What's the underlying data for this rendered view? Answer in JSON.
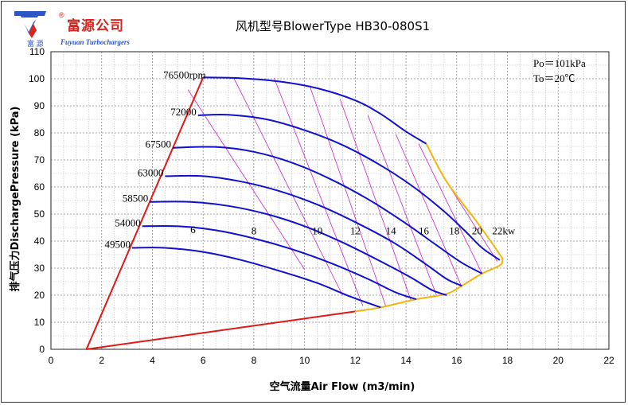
{
  "header": {
    "brand_cn": "富源公司",
    "brand_reg": "®",
    "brand_sub": "富 源",
    "brand_en": "Fuyuan Turbochargers"
  },
  "chart_data": {
    "type": "line",
    "title": "风机型号BlowerType HB30-080S1",
    "xlabel": "空气流量Air Flow (m3/min)",
    "ylabel": "排气压力DischargePressure (kPa)",
    "xlim": [
      0,
      22
    ],
    "ylim": [
      0,
      110
    ],
    "x_ticks": [
      0,
      2,
      4,
      6,
      8,
      10,
      12,
      14,
      16,
      18,
      20,
      22
    ],
    "y_ticks": [
      0,
      10,
      20,
      30,
      40,
      50,
      60,
      70,
      80,
      90,
      100,
      110
    ],
    "grid": true,
    "conditions": [
      "Po＝101kPa",
      "To＝20℃"
    ],
    "speed_curves": [
      {
        "label": "76500rpm",
        "points": [
          [
            6.0,
            100.5
          ],
          [
            7.5,
            100.2
          ],
          [
            9.0,
            99.0
          ],
          [
            10.5,
            96.5
          ],
          [
            12.0,
            92.0
          ],
          [
            13.0,
            87.0
          ],
          [
            14.0,
            80.5
          ],
          [
            14.8,
            76.0
          ]
        ]
      },
      {
        "label": "72000",
        "points": [
          [
            5.8,
            86.5
          ],
          [
            7.0,
            86.7
          ],
          [
            8.5,
            85.0
          ],
          [
            10.0,
            81.0
          ],
          [
            11.5,
            75.5
          ],
          [
            13.0,
            68.0
          ],
          [
            14.3,
            60.0
          ],
          [
            15.5,
            51.0
          ],
          [
            16.3,
            44.0
          ],
          [
            17.0,
            37.5
          ],
          [
            17.7,
            33.0
          ]
        ]
      },
      {
        "label": "67500",
        "points": [
          [
            4.8,
            74.5
          ],
          [
            6.5,
            74.8
          ],
          [
            8.0,
            73.0
          ],
          [
            9.5,
            69.0
          ],
          [
            11.0,
            63.0
          ],
          [
            12.5,
            55.5
          ],
          [
            14.0,
            46.5
          ],
          [
            15.2,
            38.5
          ],
          [
            16.2,
            32.0
          ],
          [
            17.0,
            28.0
          ]
        ]
      },
      {
        "label": "63000",
        "points": [
          [
            4.5,
            64.0
          ],
          [
            6.0,
            64.0
          ],
          [
            7.5,
            62.0
          ],
          [
            9.0,
            58.5
          ],
          [
            10.5,
            53.5
          ],
          [
            12.0,
            47.0
          ],
          [
            13.5,
            39.5
          ],
          [
            14.7,
            32.0
          ],
          [
            15.6,
            26.0
          ],
          [
            16.2,
            23.5
          ]
        ]
      },
      {
        "label": "58500",
        "points": [
          [
            3.9,
            54.5
          ],
          [
            5.5,
            54.5
          ],
          [
            7.0,
            53.0
          ],
          [
            8.5,
            50.0
          ],
          [
            10.0,
            45.5
          ],
          [
            11.5,
            39.5
          ],
          [
            13.0,
            32.5
          ],
          [
            14.2,
            26.5
          ],
          [
            15.0,
            22.0
          ],
          [
            15.6,
            20.0
          ]
        ]
      },
      {
        "label": "54000",
        "points": [
          [
            3.6,
            45.5
          ],
          [
            5.0,
            45.5
          ],
          [
            6.5,
            44.0
          ],
          [
            8.0,
            41.0
          ],
          [
            9.5,
            37.0
          ],
          [
            11.0,
            32.0
          ],
          [
            12.5,
            26.0
          ],
          [
            13.6,
            21.0
          ],
          [
            14.4,
            18.5
          ]
        ]
      },
      {
        "label": "49500",
        "points": [
          [
            3.2,
            37.5
          ],
          [
            4.5,
            37.5
          ],
          [
            6.0,
            36.0
          ],
          [
            7.5,
            33.0
          ],
          [
            9.0,
            29.0
          ],
          [
            10.5,
            24.5
          ],
          [
            11.8,
            19.5
          ],
          [
            13.0,
            15.5
          ]
        ]
      }
    ],
    "surge_line": {
      "points": [
        [
          1.4,
          0
        ],
        [
          6.0,
          100.5
        ]
      ]
    },
    "min_flow_line": {
      "points": [
        [
          1.4,
          0
        ],
        [
          12.0,
          14.0
        ]
      ]
    },
    "max_flow_line": {
      "points": [
        [
          12.0,
          14.0
        ],
        [
          13.0,
          15.5
        ],
        [
          14.4,
          18.5
        ],
        [
          15.6,
          20.5
        ],
        [
          16.2,
          23.5
        ],
        [
          17.0,
          28.0
        ],
        [
          17.7,
          31.0
        ],
        [
          17.8,
          33.0
        ],
        [
          17.7,
          35.0
        ],
        [
          16.8,
          47.0
        ],
        [
          15.6,
          62.0
        ],
        [
          14.8,
          76.0
        ]
      ]
    },
    "power_lines": [
      {
        "label": "6",
        "pts": [
          [
            5.4,
            96.0
          ],
          [
            10.0,
            29.5
          ]
        ]
      },
      {
        "label": "8",
        "pts": [
          [
            7.2,
            100.5
          ],
          [
            11.5,
            20.0
          ]
        ]
      },
      {
        "label": "10",
        "pts": [
          [
            8.8,
            100.3
          ],
          [
            12.3,
            16.0
          ]
        ]
      },
      {
        "label": "12",
        "pts": [
          [
            10.2,
            97.5
          ],
          [
            13.2,
            16.0
          ]
        ]
      },
      {
        "label": "14",
        "pts": [
          [
            11.4,
            92.5
          ],
          [
            14.2,
            18.0
          ]
        ]
      },
      {
        "label": "16",
        "pts": [
          [
            12.5,
            86.5
          ],
          [
            15.2,
            20.0
          ]
        ]
      },
      {
        "label": "18",
        "pts": [
          [
            13.6,
            79.5
          ],
          [
            16.2,
            23.0
          ]
        ]
      },
      {
        "label": "20",
        "pts": [
          [
            14.5,
            76.0
          ],
          [
            17.0,
            28.0
          ]
        ]
      },
      {
        "label": "22kw",
        "pts": [
          [
            15.8,
            59.0
          ],
          [
            17.6,
            32.5
          ]
        ]
      }
    ],
    "power_label_positions": [
      [
        5.5,
        43
      ],
      [
        7.9,
        42.5
      ],
      [
        10.3,
        42.5
      ],
      [
        11.8,
        42.5
      ],
      [
        13.2,
        42.5
      ],
      [
        14.5,
        42.5
      ],
      [
        15.7,
        42.5
      ],
      [
        16.6,
        42.5
      ],
      [
        17.4,
        42.5
      ]
    ],
    "colors": {
      "speed": "#1010d0",
      "surge": "#e01818",
      "max_flow": "#f4b40c",
      "power": "#d020d0"
    }
  }
}
